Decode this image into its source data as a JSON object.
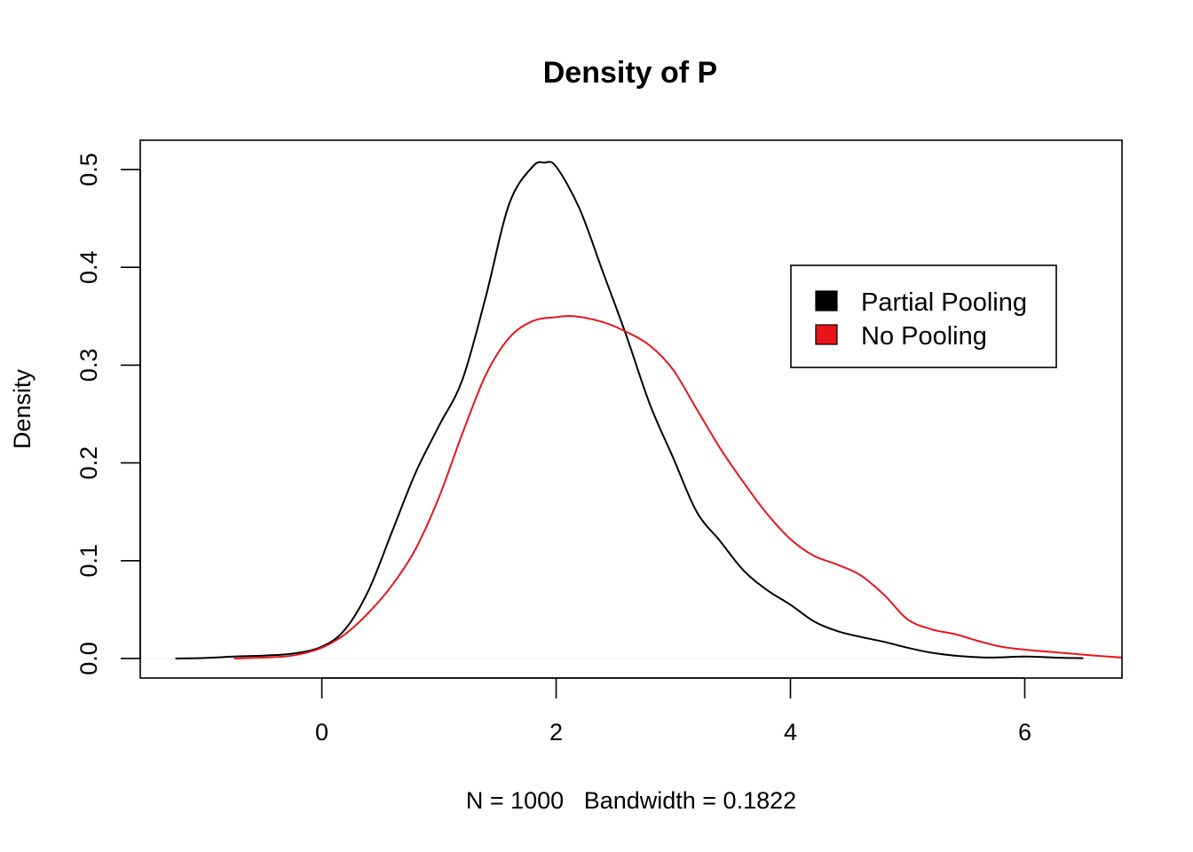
{
  "chart_data": {
    "type": "line",
    "title": "Density of P",
    "xlabel": "N = 1000   Bandwidth = 0.1822",
    "ylabel": "Density",
    "xlim": [
      -1.55,
      6.83
    ],
    "ylim": [
      -0.02,
      0.53
    ],
    "x_ticks": [
      "0",
      "2",
      "4",
      "6"
    ],
    "x_tick_values": [
      0,
      2,
      4,
      6
    ],
    "y_ticks": [
      "0.0",
      "0.1",
      "0.2",
      "0.3",
      "0.4",
      "0.5"
    ],
    "y_tick_values": [
      0,
      0.1,
      0.2,
      0.3,
      0.4,
      0.5
    ],
    "grid": false,
    "legend_position": "top-right",
    "series": [
      {
        "name": "Partial Pooling",
        "color": "#000000",
        "x": [
          -1.25,
          -1.0,
          -0.75,
          -0.5,
          -0.25,
          0.0,
          0.2,
          0.4,
          0.6,
          0.8,
          1.0,
          1.2,
          1.4,
          1.6,
          1.8,
          1.9,
          2.0,
          2.2,
          2.4,
          2.6,
          2.8,
          3.0,
          3.2,
          3.4,
          3.6,
          3.8,
          4.0,
          4.2,
          4.4,
          4.6,
          4.8,
          5.0,
          5.2,
          5.4,
          5.7,
          6.0,
          6.3,
          6.5
        ],
        "y": [
          0.0,
          0.0005,
          0.002,
          0.003,
          0.005,
          0.012,
          0.03,
          0.07,
          0.13,
          0.19,
          0.238,
          0.285,
          0.37,
          0.465,
          0.503,
          0.507,
          0.503,
          0.46,
          0.395,
          0.33,
          0.26,
          0.205,
          0.15,
          0.12,
          0.09,
          0.07,
          0.055,
          0.038,
          0.028,
          0.022,
          0.017,
          0.011,
          0.006,
          0.003,
          0.001,
          0.002,
          0.0008,
          0.0003
        ]
      },
      {
        "name": "No Pooling",
        "color": "#e8141a",
        "x": [
          -0.75,
          -0.5,
          -0.25,
          0.0,
          0.2,
          0.4,
          0.6,
          0.8,
          1.0,
          1.2,
          1.4,
          1.6,
          1.8,
          2.0,
          2.15,
          2.4,
          2.6,
          2.8,
          3.0,
          3.2,
          3.4,
          3.6,
          3.8,
          4.0,
          4.2,
          4.4,
          4.6,
          4.8,
          5.0,
          5.2,
          5.4,
          5.6,
          5.8,
          6.0,
          6.2,
          6.4,
          6.6,
          6.83
        ],
        "y": [
          0.0,
          0.001,
          0.003,
          0.011,
          0.025,
          0.047,
          0.075,
          0.112,
          0.165,
          0.23,
          0.29,
          0.328,
          0.345,
          0.349,
          0.35,
          0.344,
          0.334,
          0.32,
          0.295,
          0.255,
          0.215,
          0.18,
          0.148,
          0.122,
          0.105,
          0.096,
          0.085,
          0.065,
          0.04,
          0.03,
          0.025,
          0.018,
          0.012,
          0.009,
          0.007,
          0.005,
          0.003,
          0.001
        ]
      }
    ]
  }
}
